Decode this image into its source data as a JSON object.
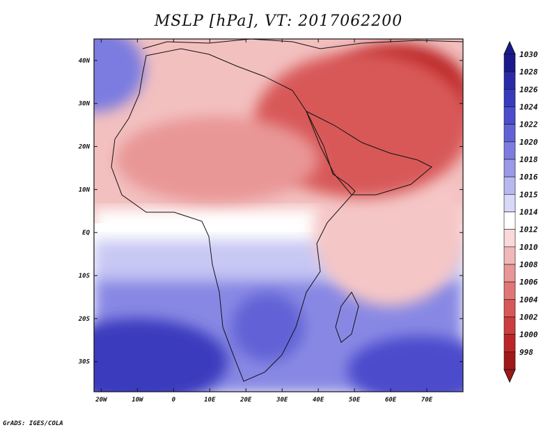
{
  "title": "MSLP [hPa], VT: 2017062200",
  "footer": "GrADS: IGES/COLA",
  "map": {
    "lon_range": [
      -22,
      80
    ],
    "lat_range": [
      -37,
      45
    ],
    "x_ticks": [
      {
        "lon": -20,
        "label": "20W"
      },
      {
        "lon": -10,
        "label": "10W"
      },
      {
        "lon": 0,
        "label": "0"
      },
      {
        "lon": 10,
        "label": "10E"
      },
      {
        "lon": 20,
        "label": "20E"
      },
      {
        "lon": 30,
        "label": "30E"
      },
      {
        "lon": 40,
        "label": "40E"
      },
      {
        "lon": 50,
        "label": "50E"
      },
      {
        "lon": 60,
        "label": "60E"
      },
      {
        "lon": 70,
        "label": "70E"
      }
    ],
    "y_ticks": [
      {
        "lat": 40,
        "label": "40N"
      },
      {
        "lat": 30,
        "label": "30N"
      },
      {
        "lat": 20,
        "label": "20N"
      },
      {
        "lat": 10,
        "label": "10N"
      },
      {
        "lat": 0,
        "label": "EQ"
      },
      {
        "lat": -10,
        "label": "10S"
      },
      {
        "lat": -20,
        "label": "20S"
      },
      {
        "lat": -30,
        "label": "30S"
      }
    ],
    "pressure_regions": [
      {
        "name": "arabia-low-core",
        "hpa": 998,
        "center": [
          55,
          27
        ],
        "radius": [
          12,
          9
        ]
      },
      {
        "name": "iran-low",
        "hpa": 1000,
        "center": [
          62,
          32
        ],
        "radius": [
          20,
          12
        ]
      },
      {
        "name": "middle-east-low",
        "hpa": 1004,
        "center": [
          52,
          25
        ],
        "radius": [
          30,
          17
        ]
      },
      {
        "name": "sahara-low",
        "hpa": 1008,
        "center": [
          12,
          17
        ],
        "radius": [
          28,
          10
        ]
      },
      {
        "name": "azores-high",
        "hpa": 1020,
        "center": [
          -22,
          38
        ],
        "radius": [
          14,
          10
        ]
      },
      {
        "name": "south-atlantic-high",
        "hpa": 1026,
        "center": [
          -10,
          -30
        ],
        "radius": [
          25,
          10
        ]
      },
      {
        "name": "indian-ocean-high",
        "hpa": 1024,
        "center": [
          68,
          -32
        ],
        "radius": [
          20,
          8
        ]
      },
      {
        "name": "southern-africa-high",
        "hpa": 1022,
        "center": [
          26,
          -22
        ],
        "radius": [
          10,
          8
        ]
      }
    ]
  },
  "colorbar": {
    "levels": [
      {
        "label": "1030",
        "color": "#1a1a8c"
      },
      {
        "label": "1028",
        "color": "#2a2aa8"
      },
      {
        "label": "1026",
        "color": "#3a3abd"
      },
      {
        "label": "1024",
        "color": "#4c4ccc"
      },
      {
        "label": "1022",
        "color": "#6262d6"
      },
      {
        "label": "1020",
        "color": "#7c7ce0"
      },
      {
        "label": "1018",
        "color": "#9a9ae9"
      },
      {
        "label": "1016",
        "color": "#b8b8f1"
      },
      {
        "label": "1015",
        "color": "#d8d8f8"
      },
      {
        "label": "1014",
        "color": "#ffffff"
      },
      {
        "label": "1012",
        "color": "#f9d9d9"
      },
      {
        "label": "1010",
        "color": "#f2b8b8"
      },
      {
        "label": "1008",
        "color": "#e99696"
      },
      {
        "label": "1006",
        "color": "#e07777"
      },
      {
        "label": "1004",
        "color": "#d85858"
      },
      {
        "label": "1002",
        "color": "#cc3d3d"
      },
      {
        "label": "1000",
        "color": "#bb2727"
      },
      {
        "label": "998",
        "color": "#a01818"
      }
    ]
  }
}
